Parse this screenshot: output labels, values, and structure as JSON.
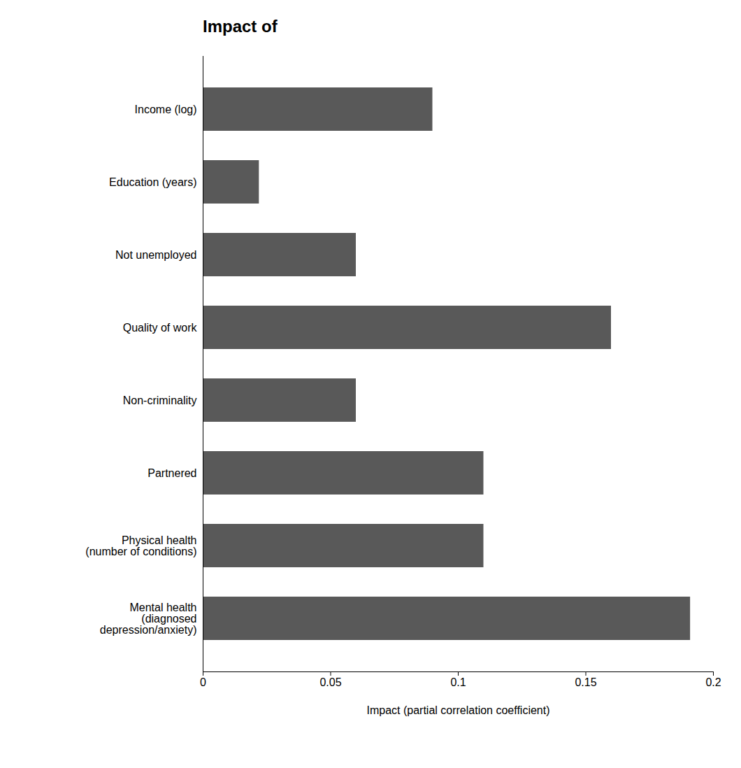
{
  "chart_data": {
    "type": "bar",
    "orientation": "horizontal",
    "title": "Impact of",
    "categories": [
      "Mental health\n(diagnosed\ndepression/anxiety)",
      "Physical health\n(number of conditions)",
      "Partnered",
      "Non-criminality",
      "Quality of work",
      "Not unemployed",
      "Education (years)",
      "Income (log)"
    ],
    "values": [
      0.191,
      0.11,
      0.11,
      0.06,
      0.16,
      0.06,
      0.022,
      0.09
    ],
    "color": "#595959",
    "xlabel": "Impact (partial correlation coefficient)",
    "xlim": [
      0,
      0.2
    ],
    "xticks": [
      0,
      0.05,
      0.1,
      0.15,
      0.2
    ],
    "grid": false
  }
}
